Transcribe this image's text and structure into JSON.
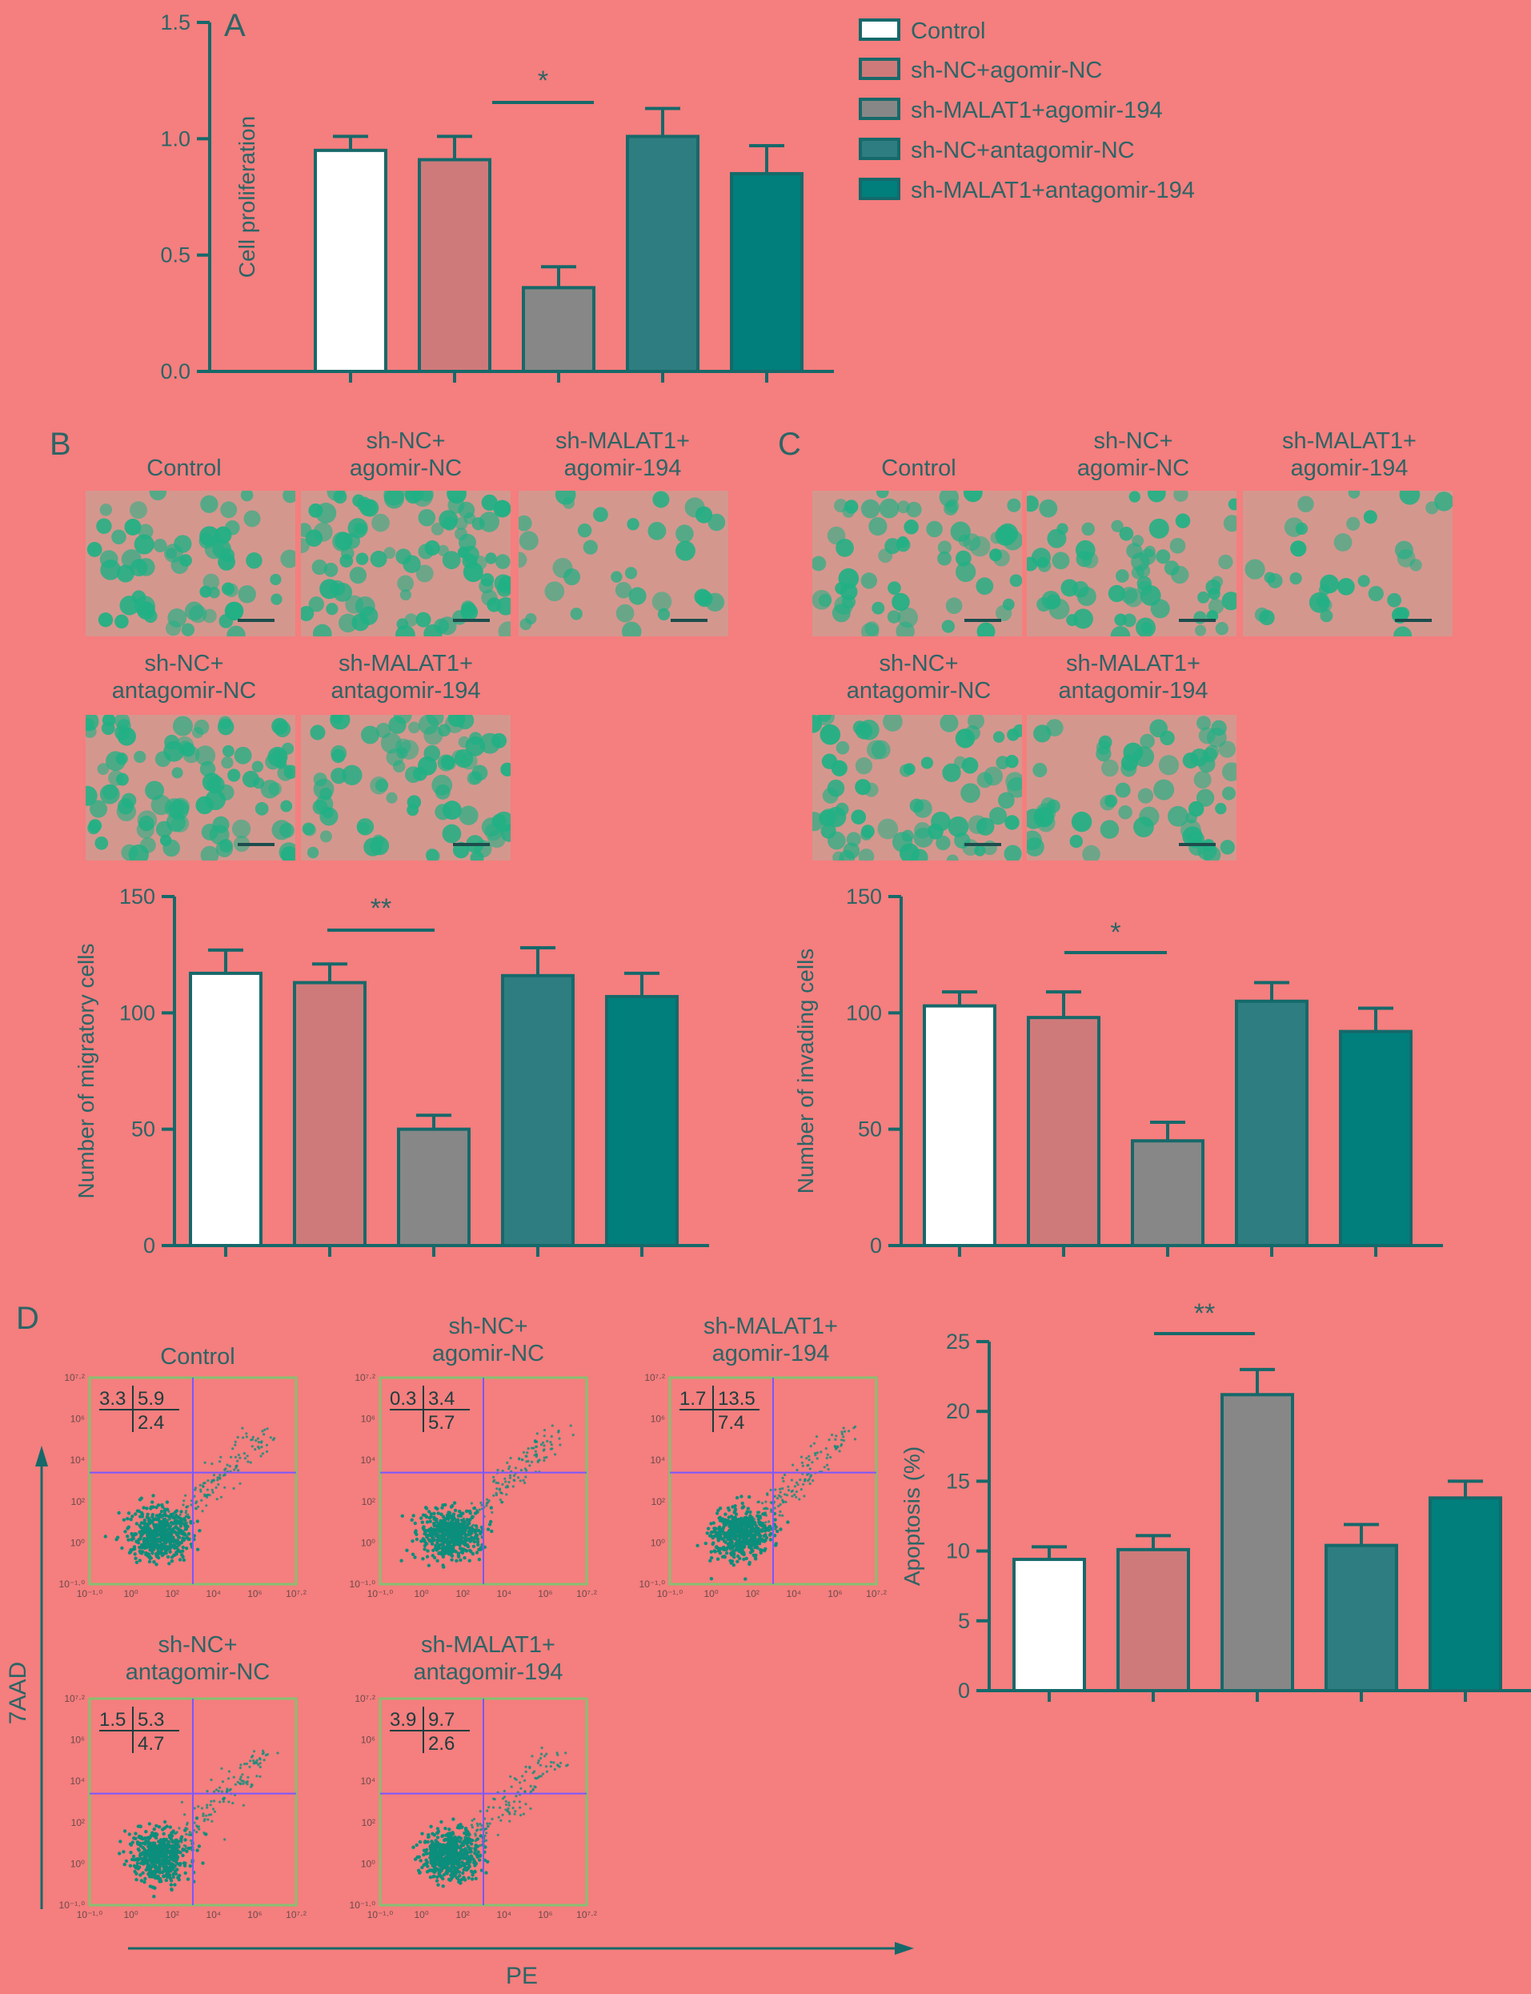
{
  "colors": {
    "background": "#f57e7e",
    "axis": "#16696a",
    "text": "#2c6566",
    "control_fill": "#ffffff",
    "ncagomir_fill": "#cf7a7a",
    "malat1agomir_fill": "#878787",
    "ncantagomir_fill": "#2e7d80",
    "malat1antagomir_fill": "#007f7c",
    "micro_bg": "#d4978e",
    "cell_color": "#21b084",
    "flow_border": "#86c070",
    "flow_gate": "#7b57ff",
    "flow_dots": "#0c8e7c"
  },
  "panels": {
    "A": "A",
    "B": "B",
    "C": "C",
    "D": "D"
  },
  "legend": {
    "items": [
      "Control",
      "sh-NC+agomir-NC",
      "sh-MALAT1+agomir-194",
      "sh-NC+antagomir-NC",
      "sh-MALAT1+antagomir-194"
    ]
  },
  "micrographs": {
    "labels": [
      [
        "Control"
      ],
      [
        "sh-NC+",
        "agomir-NC"
      ],
      [
        "sh-MALAT1+",
        "agomir-194"
      ],
      [
        "sh-NC+",
        "antagomir-NC"
      ],
      [
        "sh-MALAT1+",
        "antagomir-194"
      ]
    ],
    "migration_density": [
      0.55,
      0.9,
      0.3,
      0.85,
      0.75
    ],
    "invasion_density": [
      0.55,
      0.6,
      0.3,
      0.7,
      0.55
    ]
  },
  "flow": {
    "xlabel": "PE",
    "ylabel": "7AAD",
    "tick_labels": [
      "10⁻¹·⁰",
      "10⁰",
      "10²",
      "10⁴",
      "10⁶",
      "10⁷·²"
    ],
    "plots": [
      {
        "label": [
          "Control"
        ],
        "q_ul": "3.3",
        "q_ur": "5.9",
        "q_lr": "2.4"
      },
      {
        "label": [
          "sh-NC+",
          "agomir-NC"
        ],
        "q_ul": "0.3",
        "q_ur": "3.4",
        "q_lr": "5.7"
      },
      {
        "label": [
          "sh-MALAT1+",
          "agomir-194"
        ],
        "q_ul": "1.7",
        "q_ur": "13.5",
        "q_lr": "7.4"
      },
      {
        "label": [
          "sh-NC+",
          "antagomir-NC"
        ],
        "q_ul": "1.5",
        "q_ur": "5.3",
        "q_lr": "4.7"
      },
      {
        "label": [
          "sh-MALAT1+",
          "antagomir-194"
        ],
        "q_ul": "3.9",
        "q_ur": "9.7",
        "q_lr": "2.6"
      }
    ]
  },
  "chart_data": [
    {
      "panel": "A",
      "type": "bar",
      "categories": [
        "Control",
        "sh-NC+agomir-NC",
        "sh-MALAT1+agomir-194",
        "sh-NC+antagomir-NC",
        "sh-MALAT1+antagomir-194"
      ],
      "values": [
        0.95,
        0.91,
        0.36,
        1.01,
        0.85
      ],
      "errors": [
        0.06,
        0.1,
        0.09,
        0.12,
        0.12
      ],
      "ylabel": "Cell proliferation",
      "ylim": [
        0,
        1.5
      ],
      "yticks": [
        0,
        0.5,
        1.0,
        1.5
      ],
      "ytick_labels": [
        "0.0",
        "0.5",
        "1.0",
        "1.5"
      ],
      "significance": {
        "from": 1,
        "to": 2,
        "label": "*"
      }
    },
    {
      "panel": "B",
      "type": "bar",
      "categories": [
        "Control",
        "sh-NC+agomir-NC",
        "sh-MALAT1+agomir-194",
        "sh-NC+antagomir-NC",
        "sh-MALAT1+antagomir-194"
      ],
      "values": [
        117,
        113,
        50,
        116,
        107
      ],
      "errors": [
        10,
        8,
        6,
        12,
        10
      ],
      "ylabel": "Number of migratory cells",
      "ylim": [
        0,
        150
      ],
      "yticks": [
        0,
        50,
        100,
        150
      ],
      "ytick_labels": [
        "0",
        "50",
        "100",
        "150"
      ],
      "significance": {
        "from": 1,
        "to": 2,
        "label": "**"
      }
    },
    {
      "panel": "C",
      "type": "bar",
      "categories": [
        "Control",
        "sh-NC+agomir-NC",
        "sh-MALAT1+agomir-194",
        "sh-NC+antagomir-NC",
        "sh-MALAT1+antagomir-194"
      ],
      "values": [
        103,
        98,
        45,
        105,
        92
      ],
      "errors": [
        6,
        11,
        8,
        8,
        10
      ],
      "ylabel": "Number of invading cells",
      "ylim": [
        0,
        150
      ],
      "yticks": [
        0,
        50,
        100,
        150
      ],
      "ytick_labels": [
        "0",
        "50",
        "100",
        "150"
      ],
      "significance": {
        "from": 1,
        "to": 2,
        "label": "*"
      }
    },
    {
      "panel": "D",
      "type": "bar",
      "categories": [
        "Control",
        "sh-NC+agomir-NC",
        "sh-MALAT1+agomir-194",
        "sh-NC+antagomir-NC",
        "sh-MALAT1+antagomir-194"
      ],
      "values": [
        9.4,
        10.1,
        21.2,
        10.4,
        13.8
      ],
      "errors": [
        0.9,
        1.0,
        1.8,
        1.5,
        1.2
      ],
      "ylabel": "Apoptosis (%)",
      "ylim": [
        0,
        25
      ],
      "yticks": [
        0,
        5,
        10,
        15,
        20,
        25
      ],
      "ytick_labels": [
        "0",
        "5",
        "10",
        "15",
        "20",
        "25"
      ],
      "significance": {
        "from": 1,
        "to": 2,
        "label": "**"
      }
    }
  ]
}
